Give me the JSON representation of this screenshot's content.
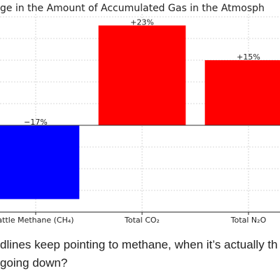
{
  "chart_data": {
    "type": "bar",
    "title": "ge in the Amount of Accumulated Gas in the Atmosph",
    "categories": [
      "attle Methane (CH₄)",
      "Total CO₂",
      "Total N₂O"
    ],
    "values": [
      -17,
      23,
      15
    ],
    "value_labels": [
      "−17%",
      "+23%",
      "+15%"
    ],
    "colors": [
      "#0000ff",
      "#ff0000",
      "#ff0000"
    ],
    "ylim": [
      -20,
      25
    ],
    "yticks": [
      -20,
      -15,
      -10,
      -5,
      0,
      5,
      10,
      15,
      20,
      25
    ],
    "grid": true,
    "caption": [
      "dlines keep pointing to methane, when it’s actually th",
      "going down?"
    ]
  }
}
